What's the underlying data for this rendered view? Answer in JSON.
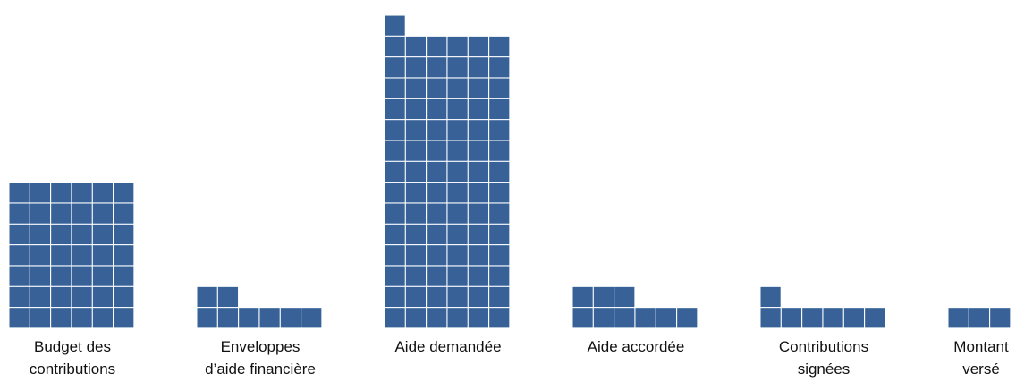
{
  "chart_data": {
    "type": "bar",
    "style": "unit-waffle",
    "units_per_row": 6,
    "color": "#376197",
    "categories": [
      "Budget des contributions",
      "Enveloppes d’aide financière",
      "Aide demandée",
      "Aide accordée",
      "Contributions signées",
      "Montant versé"
    ],
    "label_lines": [
      [
        "Budget des",
        "contributions"
      ],
      [
        "Enveloppes",
        "d’aide financière"
      ],
      [
        "Aide demandée"
      ],
      [
        "Aide accordée"
      ],
      [
        "Contributions",
        "signées"
      ],
      [
        "Montant",
        "versé"
      ]
    ],
    "values": [
      42,
      8,
      85,
      9,
      7,
      3
    ],
    "title": "",
    "xlabel": "",
    "ylabel": ""
  }
}
